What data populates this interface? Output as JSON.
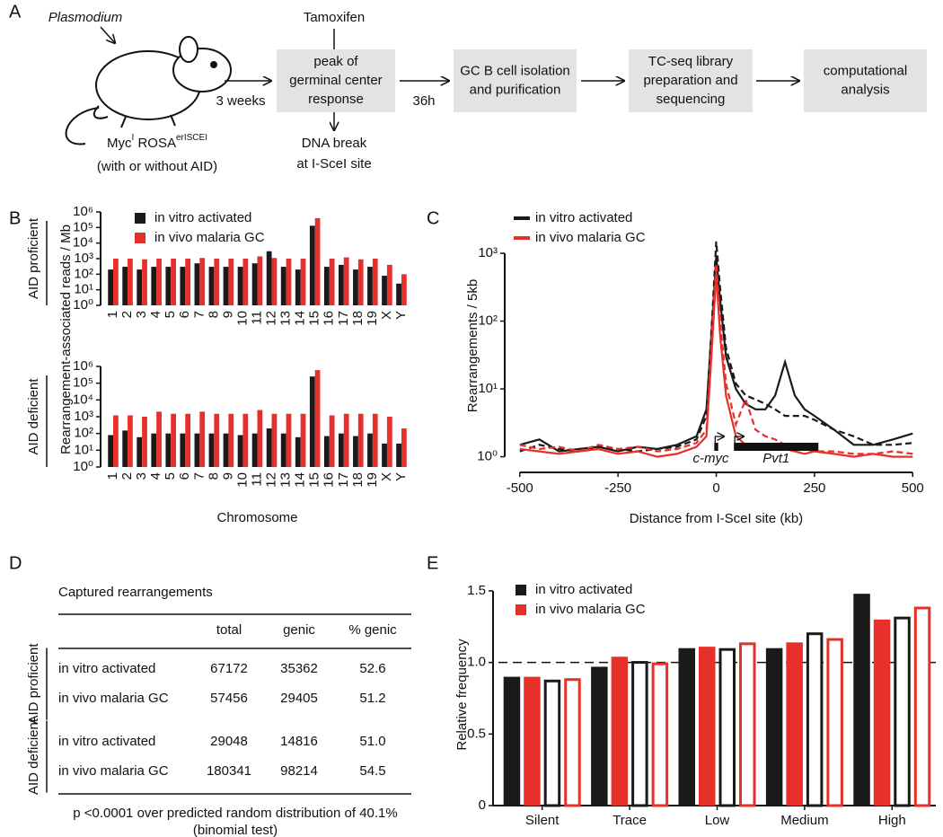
{
  "panel_labels": [
    "A",
    "B",
    "C",
    "D",
    "E"
  ],
  "workflow": {
    "infection": "Plasmodium",
    "mouse_label": [
      "Myc",
      "I",
      " ROSA",
      "erISCEI"
    ],
    "mouse_note": "(with or without AID)",
    "treatment": "Tamoxifen",
    "outcome": [
      "DNA break",
      "at I-SceI site"
    ],
    "intervals": [
      "3 weeks",
      "36h"
    ],
    "steps": [
      [
        "peak of",
        "germinal center",
        "response"
      ],
      [
        "GC B cell isolation",
        "and purification"
      ],
      [
        "TC-seq library",
        "preparation and",
        "sequencing"
      ],
      [
        "computational",
        "analysis"
      ]
    ]
  },
  "chart_data": [
    {
      "type": "bar",
      "row_label": "AID proficient",
      "y_label": "Rearrangement-associated reads / Mb",
      "log_scale": true,
      "ylim": [
        1,
        1000000
      ],
      "yticks": [
        {
          "value": 1,
          "label": "10⁰"
        },
        {
          "value": 10,
          "label": "10¹"
        },
        {
          "value": 100,
          "label": "10²"
        },
        {
          "value": 1000,
          "label": "10³"
        },
        {
          "value": 10000,
          "label": "10⁴"
        },
        {
          "value": 100000,
          "label": "10⁵"
        },
        {
          "value": 1000000,
          "label": "10⁶"
        }
      ],
      "categories": [
        "1",
        "2",
        "3",
        "4",
        "5",
        "6",
        "7",
        "8",
        "9",
        "10",
        "11",
        "12",
        "13",
        "14",
        "15",
        "16",
        "17",
        "18",
        "19",
        "X",
        "Y"
      ],
      "series": [
        {
          "name": "in vitro activated",
          "color": "#1a1a1a",
          "values": [
            200,
            300,
            200,
            300,
            300,
            300,
            500,
            300,
            300,
            300,
            500,
            3000,
            300,
            200,
            130000,
            300,
            400,
            200,
            300,
            80,
            25
          ]
        },
        {
          "name": "in vivo malaria GC",
          "color": "#e8302a",
          "values": [
            1000,
            1000,
            900,
            1000,
            1000,
            1000,
            1100,
            1000,
            1000,
            1000,
            1400,
            1100,
            1000,
            1000,
            400000,
            1000,
            1200,
            900,
            1000,
            400,
            100
          ]
        }
      ]
    },
    {
      "type": "bar",
      "row_label": "AID deficient",
      "x_label": "Chromosome",
      "log_scale": true,
      "ylim": [
        1,
        1000000
      ],
      "yticks": [
        {
          "value": 1,
          "label": "10⁰"
        },
        {
          "value": 10,
          "label": "10¹"
        },
        {
          "value": 100,
          "label": "10²"
        },
        {
          "value": 1000,
          "label": "10³"
        },
        {
          "value": 10000,
          "label": "10⁴"
        },
        {
          "value": 100000,
          "label": "10⁵"
        },
        {
          "value": 1000000,
          "label": "10⁶"
        }
      ],
      "categories": [
        "1",
        "2",
        "3",
        "4",
        "5",
        "6",
        "7",
        "8",
        "9",
        "10",
        "11",
        "12",
        "13",
        "14",
        "15",
        "16",
        "17",
        "18",
        "19",
        "X",
        "Y"
      ],
      "series": [
        {
          "color": "#1a1a1a",
          "values": [
            80,
            150,
            60,
            100,
            100,
            100,
            100,
            100,
            100,
            80,
            100,
            200,
            100,
            60,
            250000,
            70,
            100,
            70,
            100,
            25,
            25
          ]
        },
        {
          "color": "#e8302a",
          "values": [
            1200,
            1200,
            1000,
            2000,
            1500,
            1500,
            2000,
            1500,
            1500,
            1500,
            2500,
            1500,
            1500,
            1500,
            600000,
            1200,
            1500,
            1500,
            1500,
            1000,
            200
          ]
        }
      ]
    },
    {
      "type": "line",
      "y_label": "Rearrangements / 5kb",
      "x_label": "Distance from I-SceI site (kb)",
      "log_scale": true,
      "xlim": [
        -520,
        520
      ],
      "xticks": [
        -500,
        -250,
        0,
        250,
        500
      ],
      "ylim": [
        0.75,
        2500
      ],
      "yticks": [
        {
          "value": 1,
          "label": "10⁰"
        },
        {
          "value": 10,
          "label": "10¹"
        },
        {
          "value": 100,
          "label": "10²"
        },
        {
          "value": 1000,
          "label": "10³"
        }
      ],
      "x": [
        -500,
        -450,
        -400,
        -350,
        -300,
        -250,
        -200,
        -150,
        -100,
        -50,
        -25,
        -10,
        0,
        10,
        25,
        50,
        75,
        100,
        125,
        150,
        175,
        200,
        225,
        250,
        300,
        350,
        400,
        450,
        500
      ],
      "series": [
        {
          "name": "in vitro activated",
          "color": "#1a1a1a",
          "dashed": false,
          "values": [
            1.5,
            1.8,
            1.2,
            1.3,
            1.4,
            1.2,
            1.4,
            1.3,
            1.5,
            2,
            5,
            100,
            900,
            200,
            30,
            10,
            6,
            5,
            5,
            8,
            25,
            8,
            5,
            4,
            2.5,
            1.5,
            1.5,
            1.8,
            2.2
          ]
        },
        {
          "color": "#1a1a1a",
          "dashed": true,
          "values": [
            1.2,
            1.5,
            1.3,
            1.2,
            1.4,
            1.3,
            1.2,
            1.3,
            1.4,
            1.8,
            4,
            120,
            1500,
            300,
            40,
            12,
            8,
            7,
            6,
            5,
            4,
            4,
            4,
            3.5,
            2.5,
            2,
            1.5,
            1.5,
            1.6
          ]
        },
        {
          "name": "in vivo malaria GC",
          "color": "#e8302a",
          "dashed": false,
          "values": [
            1.3,
            1.2,
            1.1,
            1.2,
            1.3,
            1.1,
            1.2,
            1,
            1.1,
            1.4,
            2,
            50,
            500,
            60,
            8,
            2,
            1.5,
            1.3,
            1.4,
            1.5,
            1.3,
            1.2,
            1.1,
            1.2,
            1.1,
            1,
            1.1,
            1,
            1
          ]
        },
        {
          "color": "#e8302a",
          "dashed": true,
          "values": [
            1.5,
            1.3,
            1.4,
            1.2,
            1.5,
            1.3,
            1.4,
            1.2,
            1.3,
            1.6,
            2.5,
            80,
            700,
            100,
            12,
            3,
            7,
            2.5,
            2,
            1.8,
            1.5,
            1.3,
            1.3,
            1.2,
            1.2,
            1.1,
            1.1,
            1.2,
            1.1
          ]
        }
      ],
      "genes": [
        {
          "name": "c-myc",
          "start": -5,
          "end": 5
        },
        {
          "name": "Pvt1",
          "start": 45,
          "end": 260
        }
      ]
    },
    {
      "type": "bar",
      "y_label": "Relative frequency",
      "log_scale": false,
      "ylim": [
        0,
        1.55
      ],
      "yticks": [
        0,
        0.5,
        {
          "value": 1,
          "label": "1.0"
        },
        1.5
      ],
      "reference_line": 1,
      "categories": [
        "Silent",
        "Trace",
        "Low",
        "Medium",
        "High"
      ],
      "series": [
        {
          "name": "in vitro activated",
          "color": "#1a1a1a",
          "filled": true,
          "values": [
            0.9,
            0.97,
            1.1,
            1.1,
            1.48
          ]
        },
        {
          "name": "in vivo malaria GC",
          "color": "#e8302a",
          "filled": true,
          "values": [
            0.9,
            1.04,
            1.11,
            1.14,
            1.3
          ]
        },
        {
          "color": "#1a1a1a",
          "filled": false,
          "values": [
            0.88,
            1.01,
            1.1,
            1.21,
            1.32
          ]
        },
        {
          "color": "#e8302a",
          "filled": false,
          "values": [
            0.89,
            1,
            1.14,
            1.17,
            1.39
          ]
        }
      ]
    }
  ],
  "table": {
    "title": "Captured rearrangements",
    "columns": [
      "total",
      "genic",
      "% genic"
    ],
    "groups": [
      {
        "label": "AID proficient",
        "rows": [
          {
            "label": "in vitro activated",
            "color": "#1a1a1a",
            "cells": [
              "67172",
              "35362",
              "52.6"
            ]
          },
          {
            "label": "in vivo malaria GC",
            "color": "#e8302a",
            "cells": [
              "57456",
              "29405",
              "51.2"
            ]
          }
        ]
      },
      {
        "label": "AID deficient",
        "rows": [
          {
            "label": "in vitro activated",
            "color": "#1a1a1a",
            "cells": [
              "29048",
              "14816",
              "51.0"
            ]
          },
          {
            "label": "in vivo malaria GC",
            "color": "#e8302a",
            "cells": [
              "180341",
              "98214",
              "54.5"
            ]
          }
        ]
      }
    ],
    "footnote": [
      "p <0.0001 over predicted random distribution of 40.1%",
      "(binomial test)"
    ]
  }
}
